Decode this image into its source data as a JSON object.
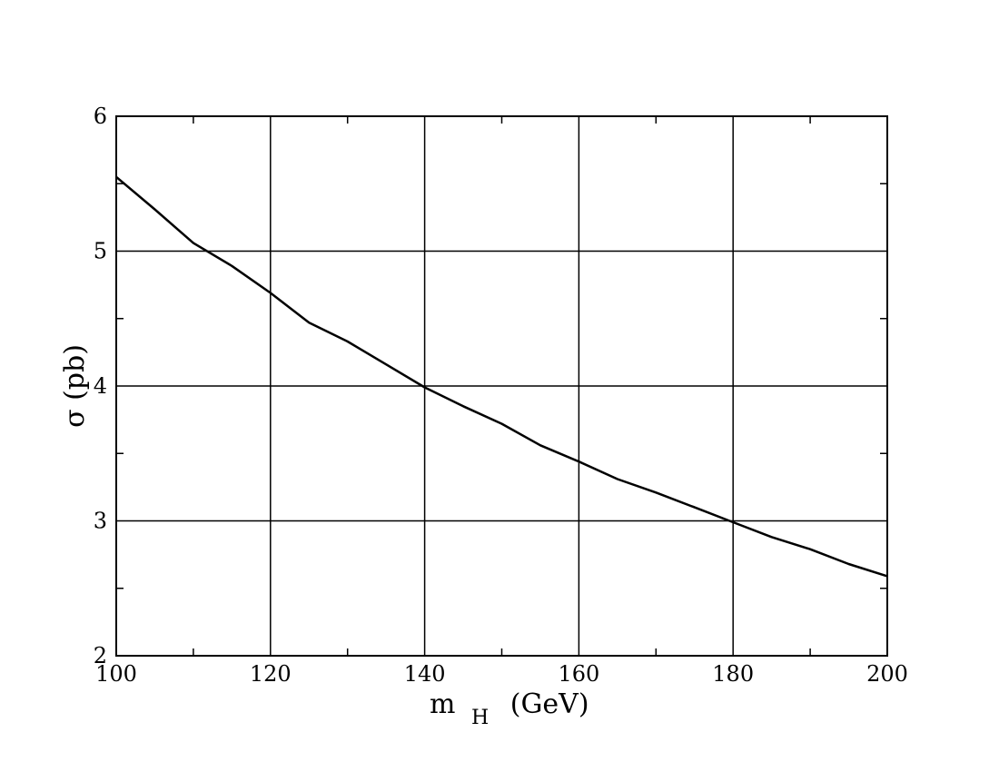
{
  "chart_data": {
    "type": "line",
    "xlabel_main": "m",
    "xlabel_sub": "H",
    "xlabel_unit": "(GeV)",
    "ylabel": "σ (pb)",
    "xlim": [
      100,
      200
    ],
    "ylim": [
      2,
      6
    ],
    "x_ticks": [
      100,
      120,
      140,
      160,
      180,
      200
    ],
    "y_ticks": [
      2,
      3,
      4,
      5,
      6
    ],
    "x_minor_ticks": [
      110,
      130,
      150,
      170,
      190
    ],
    "y_minor_ticks": [
      2.5,
      3.5,
      4.5,
      5.5
    ],
    "grid": true,
    "series": [
      {
        "x": [
          100,
          105,
          110,
          115,
          120,
          125,
          130,
          135,
          140,
          145,
          150,
          155,
          160,
          165,
          170,
          175,
          180,
          185,
          190,
          195,
          200
        ],
        "y": [
          5.55,
          5.31,
          5.06,
          4.89,
          4.69,
          4.47,
          4.33,
          4.16,
          3.99,
          3.85,
          3.72,
          3.56,
          3.44,
          3.31,
          3.21,
          3.1,
          2.99,
          2.88,
          2.79,
          2.68,
          2.59
        ]
      }
    ]
  }
}
